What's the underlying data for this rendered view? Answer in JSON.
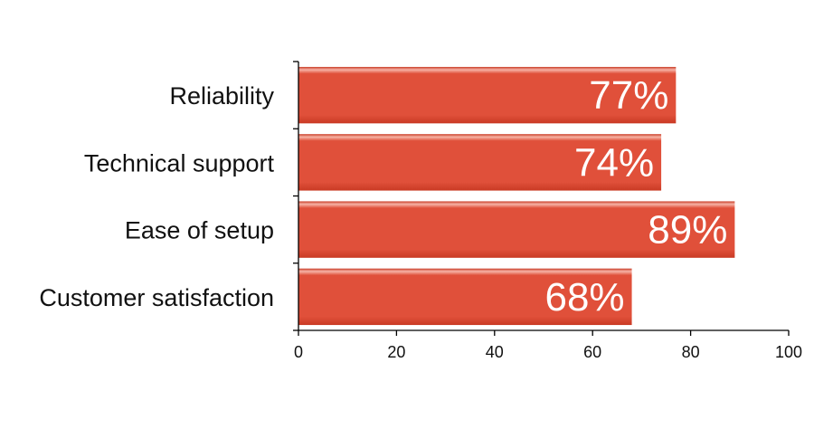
{
  "chart_data": {
    "type": "bar",
    "orientation": "horizontal",
    "categories": [
      "Reliability",
      "Technical support",
      "Ease of setup",
      "Customer satisfaction"
    ],
    "values": [
      77,
      74,
      89,
      68
    ],
    "data_labels": [
      "77%",
      "74%",
      "89%",
      "68%"
    ],
    "xlim": [
      0,
      100
    ],
    "xticks": [
      0,
      20,
      40,
      60,
      80,
      100
    ],
    "xtick_labels": [
      "0",
      "20",
      "40",
      "60",
      "80",
      "100"
    ],
    "title": "",
    "xlabel": "",
    "ylabel": "",
    "grid": false,
    "legend": "none",
    "bar_color": "#E0503A",
    "bar_highlight_color": "#F6B3A6",
    "bar_edge_color": "#C93A24",
    "data_label_color": "#FFFFFF"
  }
}
